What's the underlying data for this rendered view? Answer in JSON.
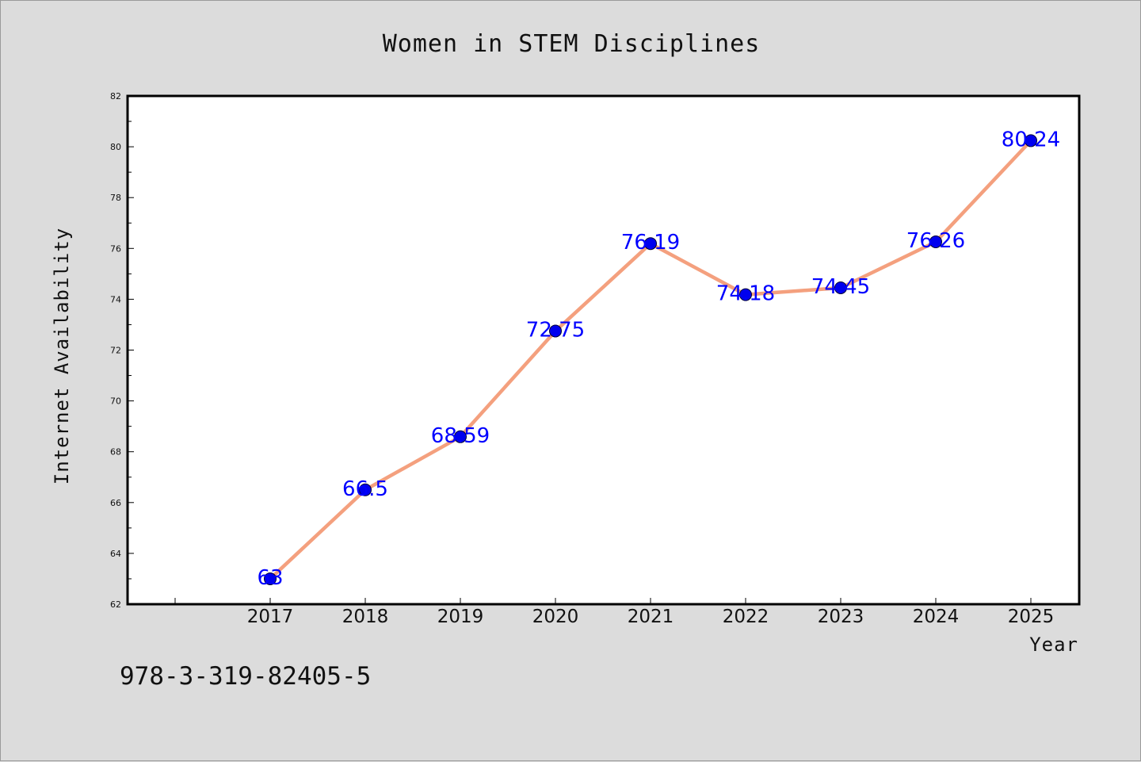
{
  "chart_data": {
    "type": "line",
    "title": "Women in STEM Disciplines",
    "xlabel": "Year",
    "ylabel": "Internet Availability",
    "categories": [
      "2017",
      "2018",
      "2019",
      "2020",
      "2021",
      "2022",
      "2023",
      "2024",
      "2025"
    ],
    "series": [
      {
        "values": [
          63,
          66.5,
          68.59,
          72.75,
          76.19,
          74.18,
          74.45,
          76.26,
          80.24
        ],
        "labels": [
          "63",
          "66.5",
          "68.59",
          "72.75",
          "76.19",
          "74.18",
          "74.45",
          "76.26",
          "80.24"
        ]
      }
    ],
    "ylim": [
      62,
      82
    ],
    "yticks": [
      "62",
      "64",
      "66",
      "68",
      "70",
      "72",
      "74",
      "76",
      "78",
      "80",
      "82"
    ],
    "grid": false,
    "legend": "none",
    "colors": {
      "line": "#f4a07e",
      "marker": "#0000ee",
      "data_label": "#0000ff",
      "plot_background": "#ffffff",
      "figure_background": "#dcdcdc"
    }
  },
  "footer": {
    "isbn": "978-3-319-82405-5"
  }
}
